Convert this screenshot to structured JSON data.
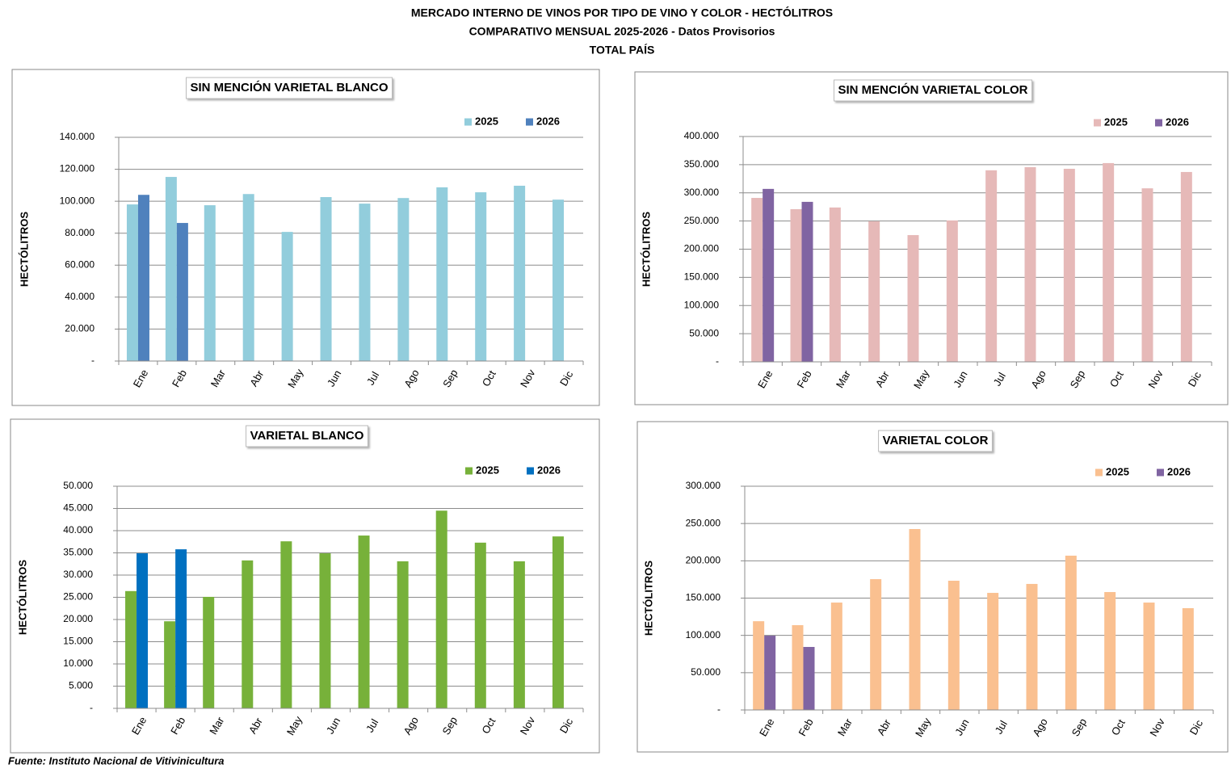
{
  "header": {
    "title": "MERCADO INTERNO DE VINOS POR TIPO DE VINO Y COLOR - HECTÓLITROS",
    "subtitle": "COMPARATIVO MENSUAL 2025-2026 - Datos Provisorios",
    "scope": "TOTAL PAÍS"
  },
  "source": "Fuente: Instituto Nacional de Vitivinicultura",
  "chart_data": [
    {
      "type": "bar",
      "title": "SIN MENCIÓN VARIETAL BLANCO",
      "ylabel": "HECTÓLITROS",
      "legend": "top-right",
      "grid": true,
      "categories": [
        "Ene",
        "Feb",
        "Mar",
        "Abr",
        "May",
        "Jun",
        "Jul",
        "Ago",
        "Sep",
        "Oct",
        "Nov",
        "Dic"
      ],
      "series": [
        {
          "name": "2025",
          "color": "#92cddc",
          "values": [
            98000,
            115200,
            97500,
            104500,
            80800,
            102600,
            98500,
            102000,
            108700,
            105600,
            109700,
            101000
          ]
        },
        {
          "name": "2026",
          "color": "#4f81bd",
          "values": [
            104000,
            86400,
            null,
            null,
            null,
            null,
            null,
            null,
            null,
            null,
            null,
            null
          ]
        }
      ],
      "ylim": [
        0,
        140000
      ],
      "yticks": [
        {
          "value": 0,
          "label": "-"
        },
        {
          "value": 20000,
          "label": "20.000"
        },
        {
          "value": 40000,
          "label": "40.000"
        },
        {
          "value": 60000,
          "label": "60.000"
        },
        {
          "value": 80000,
          "label": "80.000"
        },
        {
          "value": 100000,
          "label": "100.000"
        },
        {
          "value": 120000,
          "label": "120.000"
        },
        {
          "value": 140000,
          "label": "140.000"
        }
      ]
    },
    {
      "type": "bar",
      "title": "SIN MENCIÓN VARIETAL COLOR",
      "ylabel": "HECTÓLITROS",
      "legend": "top-right",
      "grid": true,
      "categories": [
        "Ene",
        "Feb",
        "Mar",
        "Abr",
        "May",
        "Jun",
        "Jul",
        "Ago",
        "Sep",
        "Oct",
        "Nov",
        "Dic"
      ],
      "series": [
        {
          "name": "2025",
          "color": "#e6b9b8",
          "values": [
            291000,
            271000,
            274000,
            249500,
            225000,
            251000,
            340000,
            345600,
            342700,
            352800,
            308000,
            337000
          ]
        },
        {
          "name": "2026",
          "color": "#8064a2",
          "values": [
            307000,
            284000,
            null,
            null,
            null,
            null,
            null,
            null,
            null,
            null,
            null,
            null
          ]
        }
      ],
      "ylim": [
        0,
        400000
      ],
      "yticks": [
        {
          "value": 0,
          "label": "-"
        },
        {
          "value": 50000,
          "label": "50.000"
        },
        {
          "value": 100000,
          "label": "100.000"
        },
        {
          "value": 150000,
          "label": "150.000"
        },
        {
          "value": 200000,
          "label": "200.000"
        },
        {
          "value": 250000,
          "label": "250.000"
        },
        {
          "value": 300000,
          "label": "300.000"
        },
        {
          "value": 350000,
          "label": "350.000"
        },
        {
          "value": 400000,
          "label": "400.000"
        }
      ]
    },
    {
      "type": "bar",
      "title": "VARIETAL BLANCO",
      "ylabel": "HECTÓLITROS",
      "legend": "top-right",
      "grid": true,
      "categories": [
        "Ene",
        "Feb",
        "Mar",
        "Abr",
        "May",
        "Jun",
        "Jul",
        "Ago",
        "Sep",
        "Oct",
        "Nov",
        "Dic"
      ],
      "series": [
        {
          "name": "2025",
          "color": "#77b13a",
          "values": [
            26400,
            19600,
            25100,
            33300,
            37600,
            34900,
            38900,
            33100,
            44500,
            37300,
            33100,
            38700
          ]
        },
        {
          "name": "2026",
          "color": "#0070c0",
          "values": [
            34900,
            35800,
            null,
            null,
            null,
            null,
            null,
            null,
            null,
            null,
            null,
            null
          ]
        }
      ],
      "ylim": [
        0,
        50000
      ],
      "yticks": [
        {
          "value": 0,
          "label": "-"
        },
        {
          "value": 5000,
          "label": "5.000"
        },
        {
          "value": 10000,
          "label": "10.000"
        },
        {
          "value": 15000,
          "label": "15.000"
        },
        {
          "value": 20000,
          "label": "20.000"
        },
        {
          "value": 25000,
          "label": "25.000"
        },
        {
          "value": 30000,
          "label": "30.000"
        },
        {
          "value": 35000,
          "label": "35.000"
        },
        {
          "value": 40000,
          "label": "40.000"
        },
        {
          "value": 45000,
          "label": "45.000"
        },
        {
          "value": 50000,
          "label": "50.000"
        }
      ]
    },
    {
      "type": "bar",
      "title": "VARIETAL COLOR",
      "ylabel": "HECTÓLITROS",
      "legend": "top-right",
      "grid": true,
      "categories": [
        "Ene",
        "Feb",
        "Mar",
        "Abr",
        "May",
        "Jun",
        "Jul",
        "Ago",
        "Sep",
        "Oct",
        "Nov",
        "Dic"
      ],
      "series": [
        {
          "name": "2025",
          "color": "#fac090",
          "values": [
            119000,
            113700,
            144000,
            175400,
            242600,
            173300,
            157000,
            169000,
            206900,
            158100,
            144000,
            136500
          ]
        },
        {
          "name": "2026",
          "color": "#8064a2",
          "values": [
            99600,
            84500,
            null,
            null,
            null,
            null,
            null,
            null,
            null,
            null,
            null,
            null
          ]
        }
      ],
      "ylim": [
        0,
        300000
      ],
      "yticks": [
        {
          "value": 0,
          "label": "-"
        },
        {
          "value": 50000,
          "label": "50.000"
        },
        {
          "value": 100000,
          "label": "100.000"
        },
        {
          "value": 150000,
          "label": "150.000"
        },
        {
          "value": 200000,
          "label": "200.000"
        },
        {
          "value": 250000,
          "label": "250.000"
        },
        {
          "value": 300000,
          "label": "300.000"
        }
      ]
    }
  ]
}
